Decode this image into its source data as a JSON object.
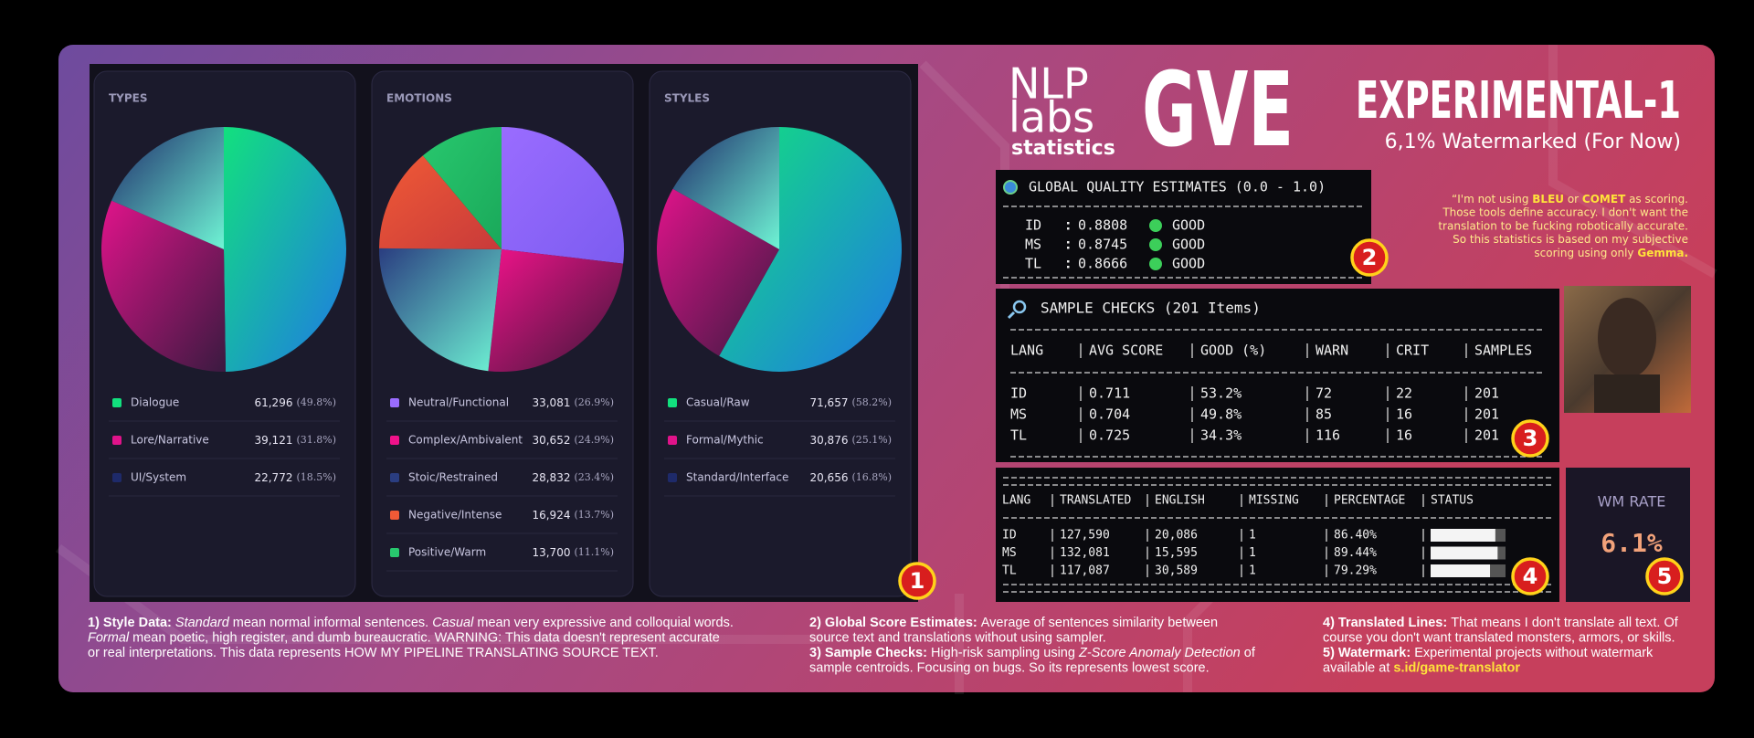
{
  "chart_data": [
    {
      "type": "pie",
      "title": "TYPES",
      "categories": [
        "Dialogue",
        "Lore/Narrative",
        "UI/System"
      ],
      "values": [
        61296,
        39121,
        22772
      ],
      "value_labels": [
        "61,296",
        "39,121",
        "22,772"
      ],
      "share_labels": [
        "(49.8%)",
        "(31.8%)",
        "(18.5%)"
      ],
      "colors": [
        [
          "#12e07e",
          "#1f78e6"
        ],
        [
          "#e0138a",
          "#3a1a40"
        ],
        [
          "#1e2a6a",
          "#6ff5d5"
        ]
      ]
    },
    {
      "type": "pie",
      "title": "EMOTIONS",
      "categories": [
        "Neutral/Functional",
        "Complex/Ambivalent",
        "Stoic/Restrained",
        "Negative/Intense",
        "Positive/Warm"
      ],
      "values": [
        33081,
        30652,
        28832,
        16924,
        13700
      ],
      "value_labels": [
        "33,081",
        "30,652",
        "28,832",
        "16,924",
        "13,700"
      ],
      "share_labels": [
        "(26.9%)",
        "(24.9%)",
        "(23.4%)",
        "(13.7%)",
        "(11.1%)"
      ],
      "colors": [
        [
          "#9a6cff",
          "#7c5cf0"
        ],
        [
          "#f0128a",
          "#3c1838"
        ],
        [
          "#2a3d80",
          "#6ff5d5"
        ],
        [
          "#f05a36",
          "#c83a3a"
        ],
        [
          "#28c86e",
          "#1aa85a"
        ]
      ]
    },
    {
      "type": "pie",
      "title": "STYLES",
      "categories": [
        "Casual/Raw",
        "Formal/Mythic",
        "Standard/Interface"
      ],
      "values": [
        71657,
        30876,
        20656
      ],
      "value_labels": [
        "71,657",
        "30,876",
        "20,656"
      ],
      "share_labels": [
        "(58.2%)",
        "(25.1%)",
        "(16.8%)"
      ],
      "colors": [
        [
          "#12e07e",
          "#1f78e6"
        ],
        [
          "#e0138a",
          "#3a1a40"
        ],
        [
          "#1e2a6a",
          "#6ff5d5"
        ]
      ]
    }
  ],
  "header": {
    "logo": [
      "NLP",
      "labs",
      "statistics"
    ],
    "brand": "GVE",
    "title": "EXPERIMENTAL-1",
    "subtitle": "6,1% Watermarked (For Now)"
  },
  "quote": [
    [
      {
        "text": "“I'm not using "
      },
      {
        "text": "BLEU",
        "style": "b"
      },
      {
        "text": " or "
      },
      {
        "text": "COMET",
        "style": "b"
      },
      {
        "text": " as scoring."
      }
    ],
    [
      {
        "text": "Those tools define accuracy. I don't want the"
      }
    ],
    [
      {
        "text": "translation to be fucking robotically accurate."
      }
    ],
    [
      {
        "text": "So this statistics is based on my subjective"
      }
    ],
    [
      {
        "text": "scoring using only "
      },
      {
        "text": "Gemma.",
        "style": "b"
      }
    ]
  ],
  "global_estimates": {
    "title": "GLOBAL QUALITY ESTIMATES (0.0 - 1.0)",
    "rows": [
      [
        "ID",
        "0.8808",
        "GOOD"
      ],
      [
        "MS",
        "0.8745",
        "GOOD"
      ],
      [
        "TL",
        "0.8666",
        "GOOD"
      ]
    ]
  },
  "sample_checks": {
    "title": "SAMPLE CHECKS (201 Items)",
    "header": [
      "LANG",
      "AVG SCORE",
      "GOOD (%)",
      "WARN",
      "CRIT",
      "SAMPLES"
    ],
    "rows": [
      [
        "ID",
        "0.711",
        "53.2%",
        "72",
        "22",
        "201"
      ],
      [
        "MS",
        "0.704",
        "49.8%",
        "85",
        "16",
        "201"
      ],
      [
        "TL",
        "0.725",
        "34.3%",
        "116",
        "16",
        "201"
      ]
    ]
  },
  "translation_table": {
    "header": [
      "LANG",
      "TRANSLATED",
      "ENGLISH",
      "MISSING",
      "PERCENTAGE",
      "STATUS"
    ],
    "rows": [
      [
        "ID",
        "127,590",
        "20,086",
        "1",
        "86.40%"
      ],
      [
        "MS",
        "132,081",
        "15,595",
        "1",
        "89.44%"
      ],
      [
        "TL",
        "117,087",
        "30,589",
        "1",
        "79.29%"
      ]
    ]
  },
  "wm_rate": {
    "label": "WM RATE",
    "value": "6.1%"
  },
  "badges": [
    "1",
    "2",
    "3",
    "4",
    "5"
  ],
  "notes": [
    [
      [
        {
          "text": "1) Style Data: ",
          "style": "b"
        },
        {
          "text": "Standard",
          "style": "i"
        },
        {
          "text": " mean normal informal sentences. "
        },
        {
          "text": "Casual",
          "style": "i"
        },
        {
          "text": " mean very expressive and colloquial words."
        }
      ],
      [
        {
          "text": "Formal",
          "style": "i"
        },
        {
          "text": " mean poetic, high register, and dumb bureaucratic. WARNING: This data doesn't represent accurate"
        }
      ],
      [
        {
          "text": "or real interpretations. This data represents HOW MY PIPELINE TRANSLATING SOURCE TEXT."
        }
      ]
    ],
    [
      [
        {
          "text": "2) Global Score Estimates: ",
          "style": "b"
        },
        {
          "text": "Average of sentences similarity between"
        }
      ],
      [
        {
          "text": "source text and translations without using sampler."
        }
      ],
      [
        {
          "text": "3) Sample Checks: ",
          "style": "b"
        },
        {
          "text": "High-risk sampling using "
        },
        {
          "text": "Z-Score Anomaly Detection",
          "style": "i"
        },
        {
          "text": " of"
        }
      ],
      [
        {
          "text": "sample centroids. Focusing on bugs. So its represents lowest score."
        }
      ]
    ],
    [
      [
        {
          "text": "4) Translated Lines: ",
          "style": "b"
        },
        {
          "text": "That means I don't translate all text. Of"
        }
      ],
      [
        {
          "text": "course you don't want translated monsters, armors, or skills."
        }
      ],
      [
        {
          "text": "5) Watermark: ",
          "style": "b"
        },
        {
          "text": "Experimental projects without watermark"
        }
      ],
      [
        {
          "text": "available at "
        },
        {
          "text": "s.id/game-translator",
          "style": "y"
        }
      ]
    ]
  ]
}
